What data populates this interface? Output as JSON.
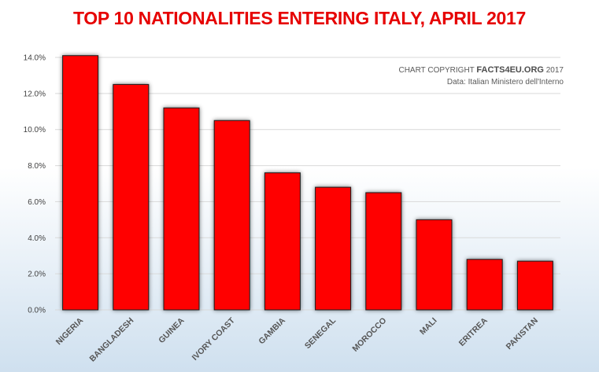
{
  "colors": {
    "title": "#e60000",
    "bar": "#ff0000",
    "bar_stroke": "#1a1a1a",
    "grid": "#d9d9d9"
  },
  "credit": {
    "line1_prefix": "CHART COPYRIGHT ",
    "brand": "FACTS4EU.ORG",
    "line1_suffix": " 2017",
    "line2": "Data: Italian Ministero dell'Interno"
  },
  "chart_data": {
    "type": "bar",
    "title": "TOP 10 NATIONALITIES ENTERING ITALY, APRIL 2017",
    "categories": [
      "NIGERIA",
      "BANGLADESH",
      "GUINEA",
      "IVORY COAST",
      "GAMBIA",
      "SENEGAL",
      "MOROCCO",
      "MALI",
      "ERITREA",
      "PAKISTAN"
    ],
    "values": [
      14.1,
      12.5,
      11.2,
      10.5,
      7.6,
      6.8,
      6.5,
      5.0,
      2.8,
      2.7
    ],
    "xlabel": "",
    "ylabel": "",
    "ylim": [
      0,
      14
    ],
    "yticks": [
      "0.0%",
      "2.0%",
      "4.0%",
      "6.0%",
      "8.0%",
      "10.0%",
      "12.0%",
      "14.0%"
    ],
    "grid": true,
    "legend": "none"
  }
}
